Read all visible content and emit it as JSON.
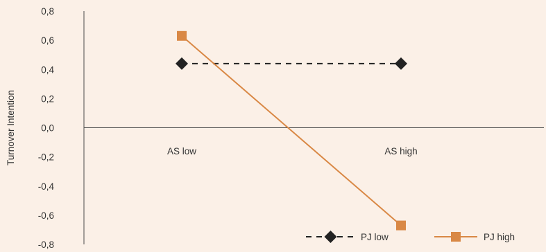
{
  "chart_data": {
    "type": "line",
    "title": "",
    "xlabel": "",
    "ylabel": "Turnover Intention",
    "categories": [
      "AS low",
      "AS high"
    ],
    "ylim": [
      -0.8,
      0.8
    ],
    "yticks": [
      "0,8",
      "0,6",
      "0,4",
      "0,2",
      "0,0",
      "-0,2",
      "-0,4",
      "-0,6",
      "-0,8"
    ],
    "ytick_values": [
      0.8,
      0.6,
      0.4,
      0.2,
      0.0,
      -0.2,
      -0.4,
      -0.6,
      -0.8
    ],
    "grid": false,
    "legend_position": "bottom-right",
    "series": [
      {
        "name": "PJ low",
        "values": [
          0.44,
          0.44
        ],
        "color": "#222222",
        "line_style": "dashed",
        "marker": "diamond"
      },
      {
        "name": "PJ high",
        "values": [
          0.63,
          -0.67
        ],
        "color": "#d98845",
        "line_style": "solid",
        "marker": "square"
      }
    ]
  }
}
